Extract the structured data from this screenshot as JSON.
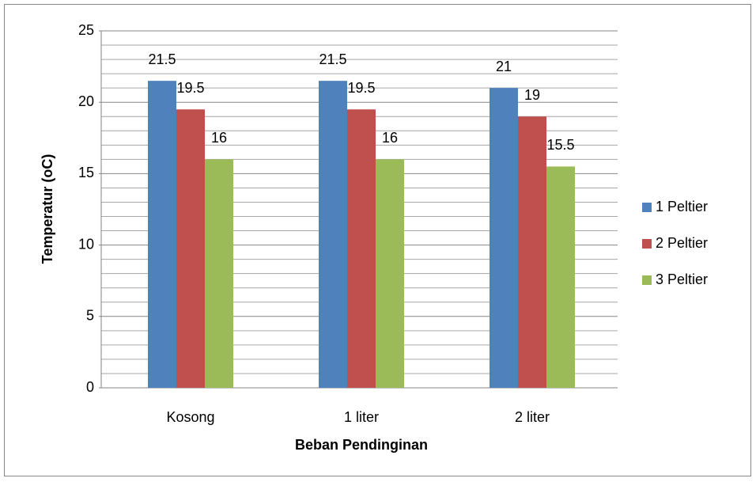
{
  "chart_data": {
    "type": "bar",
    "x_label": "Beban Pendinginan",
    "y_label": "Temperatur (oC)",
    "categories": [
      "Kosong",
      "1 liter",
      "2 liter"
    ],
    "series": [
      {
        "name": "1 Peltier",
        "color": "#4f81bd",
        "values": [
          21.5,
          21.5,
          21
        ]
      },
      {
        "name": "2 Peltier",
        "color": "#c0504d",
        "values": [
          19.5,
          19.5,
          19
        ]
      },
      {
        "name": "3 Peltier",
        "color": "#9bbb59",
        "values": [
          16,
          16,
          15.5
        ]
      }
    ],
    "ylim": [
      0,
      25
    ],
    "yticks": [
      0,
      5,
      10,
      15,
      20,
      25
    ],
    "minor_yticks": [
      1,
      2,
      3,
      4,
      6,
      7,
      8,
      9,
      11,
      12,
      13,
      14,
      16,
      17,
      18,
      19,
      21,
      22,
      23,
      24
    ],
    "grid": true,
    "legend": "right"
  }
}
